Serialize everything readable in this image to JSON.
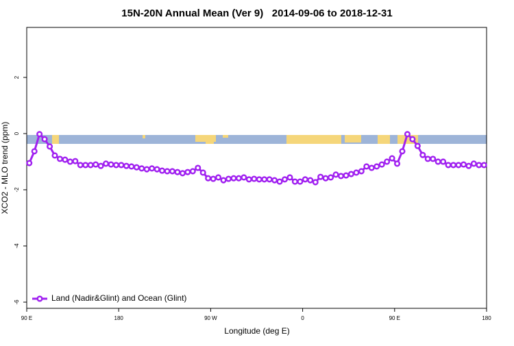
{
  "chart_data": {
    "type": "line",
    "title": "15N-20N Annual Mean (Ver 9)   2014-09-06 to 2018-12-31",
    "xlabel": "Longitude (deg E)",
    "ylabel": "XCO2 - MLO trend (ppm)",
    "xlim": [
      90,
      540
    ],
    "xticks": [
      {
        "value": 90,
        "label": "90 E"
      },
      {
        "value": 180,
        "label": "180"
      },
      {
        "value": 270,
        "label": "90 W"
      },
      {
        "value": 360,
        "label": "0"
      },
      {
        "value": 450,
        "label": "90 E"
      },
      {
        "value": 540,
        "label": "180"
      }
    ],
    "ylim": [
      -6.22,
      3.78
    ],
    "yticks": [
      -6,
      -4,
      -2,
      0,
      2
    ],
    "legend": "bottom-left",
    "series": [
      {
        "name": "Land (Nadir&Glint) and Ocean (Glint)",
        "color": "#a020f0",
        "x": [
          92.5,
          97.5,
          102.5,
          107.5,
          112.5,
          117.5,
          122.5,
          127.5,
          132.5,
          137.5,
          142.5,
          147.5,
          152.5,
          157.5,
          162.5,
          167.5,
          172.5,
          177.5,
          182.5,
          187.5,
          192.5,
          197.5,
          202.5,
          207.5,
          212.5,
          217.5,
          222.5,
          227.5,
          232.5,
          237.5,
          242.5,
          247.5,
          252.5,
          257.5,
          262.5,
          267.5,
          272.5,
          277.5,
          282.5,
          287.5,
          292.5,
          297.5,
          302.5,
          307.5,
          312.5,
          317.5,
          322.5,
          327.5,
          332.5,
          337.5,
          342.5,
          347.5,
          352.5,
          357.5,
          362.5,
          367.5,
          372.5,
          377.5,
          382.5,
          387.5,
          392.5,
          397.5,
          402.5,
          407.5,
          412.5,
          417.5,
          422.5,
          427.5,
          432.5,
          437.5,
          442.5,
          447.5,
          452.5,
          457.5,
          462.5,
          467.5,
          472.5,
          477.5,
          482.5,
          487.5,
          492.5,
          497.5,
          502.5,
          507.5,
          512.5,
          517.5,
          522.5,
          527.5,
          532.5,
          537.5
        ],
        "values": [
          -1.05,
          -0.63,
          -0.02,
          -0.2,
          -0.46,
          -0.78,
          -0.9,
          -0.93,
          -1.0,
          -0.98,
          -1.12,
          -1.12,
          -1.12,
          -1.1,
          -1.15,
          -1.07,
          -1.1,
          -1.12,
          -1.12,
          -1.15,
          -1.17,
          -1.2,
          -1.24,
          -1.27,
          -1.24,
          -1.27,
          -1.32,
          -1.34,
          -1.34,
          -1.37,
          -1.41,
          -1.37,
          -1.34,
          -1.22,
          -1.39,
          -1.59,
          -1.61,
          -1.56,
          -1.66,
          -1.61,
          -1.59,
          -1.59,
          -1.56,
          -1.63,
          -1.61,
          -1.63,
          -1.63,
          -1.63,
          -1.66,
          -1.71,
          -1.63,
          -1.56,
          -1.71,
          -1.71,
          -1.63,
          -1.66,
          -1.73,
          -1.54,
          -1.59,
          -1.56,
          -1.46,
          -1.51,
          -1.49,
          -1.44,
          -1.39,
          -1.34,
          -1.17,
          -1.22,
          -1.17,
          -1.1,
          -1.0,
          -0.88,
          -1.07,
          -0.63,
          -0.02,
          -0.2,
          -0.44,
          -0.76,
          -0.9,
          -0.9,
          -1.0,
          -1.0,
          -1.12,
          -1.12,
          -1.12,
          -1.1,
          -1.15,
          -1.07,
          -1.12,
          -1.12
        ]
      }
    ]
  }
}
